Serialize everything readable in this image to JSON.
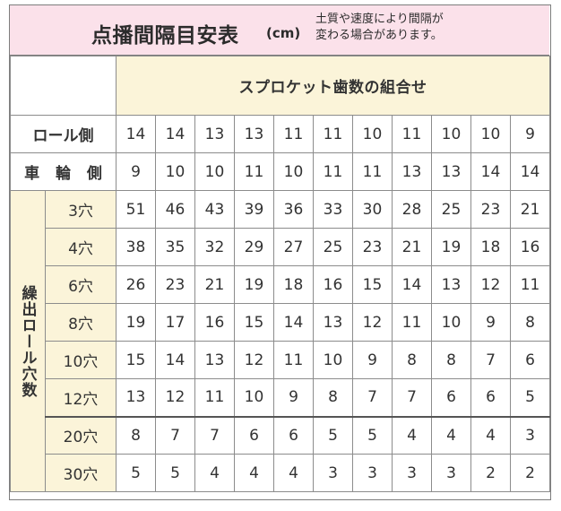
{
  "header": {
    "title": "点播間隔目安表",
    "unit": "(cm)",
    "note_line1": "土質や速度により間隔が",
    "note_line2": "変わる場合があります。"
  },
  "table": {
    "sprocket_header": "スプロケット歯数の組合せ",
    "roll_side_label": "ロール側",
    "wheel_side_label": "車 輪 側",
    "roll_side": [
      "14",
      "14",
      "13",
      "13",
      "11",
      "11",
      "10",
      "11",
      "10",
      "10",
      "9"
    ],
    "wheel_side": [
      "9",
      "10",
      "10",
      "11",
      "10",
      "11",
      "11",
      "13",
      "13",
      "14",
      "14"
    ],
    "holes_group_label": "繰出ロール穴数",
    "rows": [
      {
        "holes": "3穴",
        "values": [
          "51",
          "46",
          "43",
          "39",
          "36",
          "33",
          "30",
          "28",
          "25",
          "23",
          "21"
        ]
      },
      {
        "holes": "4穴",
        "values": [
          "38",
          "35",
          "32",
          "29",
          "27",
          "25",
          "23",
          "21",
          "19",
          "18",
          "16"
        ]
      },
      {
        "holes": "6穴",
        "values": [
          "26",
          "23",
          "21",
          "19",
          "18",
          "16",
          "15",
          "14",
          "13",
          "12",
          "11"
        ]
      },
      {
        "holes": "8穴",
        "values": [
          "19",
          "17",
          "16",
          "15",
          "14",
          "13",
          "12",
          "11",
          "10",
          "9",
          "8"
        ]
      },
      {
        "holes": "10穴",
        "values": [
          "15",
          "14",
          "13",
          "12",
          "11",
          "10",
          "9",
          "8",
          "8",
          "7",
          "6"
        ]
      },
      {
        "holes": "12穴",
        "values": [
          "13",
          "12",
          "11",
          "10",
          "9",
          "8",
          "7",
          "7",
          "6",
          "6",
          "5"
        ]
      },
      {
        "holes": "20穴",
        "values": [
          "8",
          "7",
          "7",
          "6",
          "6",
          "5",
          "5",
          "4",
          "4",
          "4",
          "3"
        ]
      },
      {
        "holes": "30穴",
        "values": [
          "5",
          "5",
          "4",
          "4",
          "4",
          "3",
          "3",
          "3",
          "3",
          "2",
          "2"
        ]
      }
    ]
  },
  "colors": {
    "title_bg": "#fbe1ea",
    "header_bg": "#fbf4d9",
    "border": "#8c8c8c"
  }
}
